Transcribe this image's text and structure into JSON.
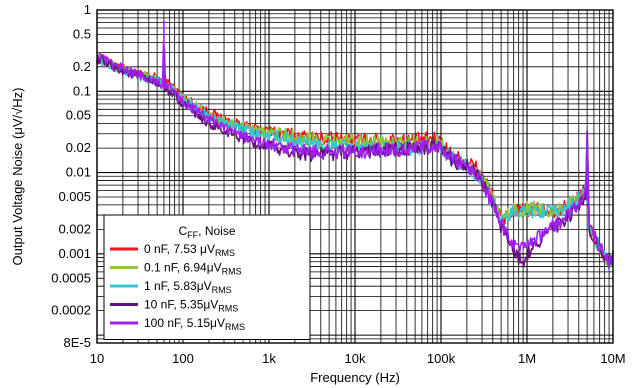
{
  "chart_data": {
    "type": "line",
    "xlabel": "Frequency (Hz)",
    "ylabel": "Output Voltage Noise (μV/√Hz)",
    "xscale": "log",
    "yscale": "log",
    "xlim": [
      10,
      10000000
    ],
    "ylim": [
      8e-05,
      1
    ],
    "grid": true,
    "x_ticks": [
      {
        "v": 10,
        "label": "10"
      },
      {
        "v": 100,
        "label": "100"
      },
      {
        "v": 1000,
        "label": "1k"
      },
      {
        "v": 10000,
        "label": "10k"
      },
      {
        "v": 100000,
        "label": "100k"
      },
      {
        "v": 1000000,
        "label": "1M"
      },
      {
        "v": 10000000,
        "label": "10M"
      }
    ],
    "y_ticks": [
      {
        "v": 1,
        "label": "1"
      },
      {
        "v": 0.5,
        "label": "0.5"
      },
      {
        "v": 0.2,
        "label": "0.2"
      },
      {
        "v": 0.1,
        "label": "0.1"
      },
      {
        "v": 0.05,
        "label": "0.05"
      },
      {
        "v": 0.02,
        "label": "0.02"
      },
      {
        "v": 0.01,
        "label": "0.01"
      },
      {
        "v": 0.005,
        "label": "0.005"
      },
      {
        "v": 0.002,
        "label": "0.002"
      },
      {
        "v": 0.001,
        "label": "0.001"
      },
      {
        "v": 0.0005,
        "label": "0.0005"
      },
      {
        "v": 0.0002,
        "label": "0.0002"
      },
      {
        "v": 8e-05,
        "label": "8E-5"
      }
    ],
    "legend": {
      "position": "bottom-left",
      "title_main": "C",
      "title_sub": "FF",
      "title_rest": ", Noise",
      "entries": [
        {
          "main": "0 nF, 7.53 μV",
          "sub": "RMS",
          "color": "#e8171f"
        },
        {
          "main": "0.1 nF, 6.94μV",
          "sub": "RMS",
          "color": "#8dc63f"
        },
        {
          "main": "1 nF, 5.83μV",
          "sub": "RMS",
          "color": "#36c5d0"
        },
        {
          "main": "10 nF, 5.35μV",
          "sub": "RMS",
          "color": "#6a0e82"
        },
        {
          "main": "100 nF, 5.15μV",
          "sub": "RMS",
          "color": "#a020f0"
        }
      ]
    },
    "series": [
      {
        "name": "0 nF, 7.53 μVRMS",
        "color": "#e8171f",
        "points": [
          [
            10,
            0.27
          ],
          [
            14,
            0.22
          ],
          [
            20,
            0.19
          ],
          [
            30,
            0.16
          ],
          [
            45,
            0.15
          ],
          [
            62,
            0.13
          ],
          [
            80,
            0.11
          ],
          [
            100,
            0.085
          ],
          [
            150,
            0.065
          ],
          [
            200,
            0.055
          ],
          [
            300,
            0.045
          ],
          [
            500,
            0.038
          ],
          [
            700,
            0.034
          ],
          [
            1000,
            0.032
          ],
          [
            1500,
            0.03
          ],
          [
            2000,
            0.028
          ],
          [
            3000,
            0.027
          ],
          [
            5000,
            0.026
          ],
          [
            10000,
            0.025
          ],
          [
            20000,
            0.025
          ],
          [
            30000,
            0.025
          ],
          [
            50000,
            0.025
          ],
          [
            80000,
            0.026
          ],
          [
            100000,
            0.024
          ],
          [
            130000,
            0.017
          ],
          [
            160000,
            0.015
          ],
          [
            200000,
            0.014
          ],
          [
            250000,
            0.012
          ],
          [
            300000,
            0.009
          ],
          [
            350000,
            0.007
          ],
          [
            400000,
            0.005
          ],
          [
            450000,
            0.0035
          ],
          [
            500000,
            0.0026
          ],
          [
            600000,
            0.003
          ],
          [
            700000,
            0.0035
          ],
          [
            800000,
            0.0033
          ],
          [
            1000000,
            0.0035
          ],
          [
            1500000,
            0.0036
          ],
          [
            2000000,
            0.0034
          ],
          [
            2500000,
            0.0035
          ],
          [
            3000000,
            0.004
          ],
          [
            4000000,
            0.005
          ],
          [
            4800000,
            0.006
          ],
          [
            5000000,
            0.03
          ],
          [
            5300000,
            0.002
          ],
          [
            6000000,
            0.0017
          ],
          [
            7000000,
            0.0012
          ],
          [
            8000000,
            0.0009
          ],
          [
            9000000,
            0.0008
          ],
          [
            10000000,
            0.0009
          ]
        ]
      },
      {
        "name": "0.1 nF, 6.94μVRMS",
        "color": "#8dc63f",
        "points": [
          [
            10,
            0.26
          ],
          [
            14,
            0.22
          ],
          [
            20,
            0.19
          ],
          [
            30,
            0.16
          ],
          [
            45,
            0.145
          ],
          [
            62,
            0.13
          ],
          [
            80,
            0.105
          ],
          [
            100,
            0.082
          ],
          [
            150,
            0.063
          ],
          [
            200,
            0.052
          ],
          [
            300,
            0.043
          ],
          [
            500,
            0.036
          ],
          [
            700,
            0.033
          ],
          [
            1000,
            0.031
          ],
          [
            1500,
            0.029
          ],
          [
            2000,
            0.027
          ],
          [
            3000,
            0.026
          ],
          [
            5000,
            0.025
          ],
          [
            10000,
            0.024
          ],
          [
            20000,
            0.024
          ],
          [
            30000,
            0.023
          ],
          [
            50000,
            0.023
          ],
          [
            80000,
            0.023
          ],
          [
            100000,
            0.022
          ],
          [
            130000,
            0.016
          ],
          [
            160000,
            0.014
          ],
          [
            200000,
            0.013
          ],
          [
            250000,
            0.011
          ],
          [
            300000,
            0.008
          ],
          [
            350000,
            0.0065
          ],
          [
            400000,
            0.0048
          ],
          [
            450000,
            0.0034
          ],
          [
            500000,
            0.0025
          ],
          [
            600000,
            0.003
          ],
          [
            700000,
            0.0035
          ],
          [
            800000,
            0.0033
          ],
          [
            1000000,
            0.0036
          ],
          [
            1500000,
            0.0036
          ],
          [
            2000000,
            0.0034
          ],
          [
            2500000,
            0.0036
          ],
          [
            3000000,
            0.004
          ],
          [
            4000000,
            0.005
          ],
          [
            4800000,
            0.006
          ],
          [
            5000000,
            0.03
          ],
          [
            5300000,
            0.002
          ],
          [
            6000000,
            0.0017
          ],
          [
            7000000,
            0.0012
          ],
          [
            8000000,
            0.0009
          ],
          [
            9000000,
            0.0008
          ],
          [
            10000000,
            0.0009
          ]
        ]
      },
      {
        "name": "1 nF, 5.83μVRMS",
        "color": "#36c5d0",
        "points": [
          [
            10,
            0.26
          ],
          [
            14,
            0.21
          ],
          [
            20,
            0.18
          ],
          [
            30,
            0.155
          ],
          [
            45,
            0.14
          ],
          [
            62,
            0.125
          ],
          [
            80,
            0.1
          ],
          [
            100,
            0.078
          ],
          [
            150,
            0.06
          ],
          [
            200,
            0.05
          ],
          [
            300,
            0.041
          ],
          [
            500,
            0.034
          ],
          [
            700,
            0.03
          ],
          [
            1000,
            0.028
          ],
          [
            1500,
            0.026
          ],
          [
            2000,
            0.024
          ],
          [
            3000,
            0.023
          ],
          [
            5000,
            0.021
          ],
          [
            10000,
            0.02
          ],
          [
            20000,
            0.02
          ],
          [
            30000,
            0.02
          ],
          [
            50000,
            0.02
          ],
          [
            80000,
            0.021
          ],
          [
            100000,
            0.02
          ],
          [
            130000,
            0.015
          ],
          [
            160000,
            0.013
          ],
          [
            200000,
            0.012
          ],
          [
            250000,
            0.01
          ],
          [
            300000,
            0.0075
          ],
          [
            350000,
            0.006
          ],
          [
            400000,
            0.0045
          ],
          [
            450000,
            0.0032
          ],
          [
            500000,
            0.0024
          ],
          [
            600000,
            0.0028
          ],
          [
            700000,
            0.0033
          ],
          [
            800000,
            0.0031
          ],
          [
            1000000,
            0.0034
          ],
          [
            1500000,
            0.0034
          ],
          [
            2000000,
            0.0032
          ],
          [
            2500000,
            0.0034
          ],
          [
            3000000,
            0.0038
          ],
          [
            4000000,
            0.0047
          ],
          [
            4800000,
            0.0058
          ],
          [
            5000000,
            0.028
          ],
          [
            5300000,
            0.002
          ],
          [
            6000000,
            0.0016
          ],
          [
            7000000,
            0.0012
          ],
          [
            8000000,
            0.0009
          ],
          [
            9000000,
            0.0008
          ],
          [
            10000000,
            0.0009
          ]
        ]
      },
      {
        "name": "10 nF, 5.35μVRMS",
        "color": "#6a0e82",
        "points": [
          [
            10,
            0.25
          ],
          [
            14,
            0.21
          ],
          [
            20,
            0.18
          ],
          [
            30,
            0.15
          ],
          [
            45,
            0.13
          ],
          [
            62,
            0.11
          ],
          [
            80,
            0.09
          ],
          [
            100,
            0.07
          ],
          [
            150,
            0.05
          ],
          [
            200,
            0.04
          ],
          [
            300,
            0.032
          ],
          [
            500,
            0.026
          ],
          [
            700,
            0.022
          ],
          [
            1000,
            0.02
          ],
          [
            1500,
            0.019
          ],
          [
            2000,
            0.018
          ],
          [
            3000,
            0.017
          ],
          [
            5000,
            0.017
          ],
          [
            10000,
            0.018
          ],
          [
            20000,
            0.019
          ],
          [
            30000,
            0.019
          ],
          [
            50000,
            0.02
          ],
          [
            80000,
            0.02
          ],
          [
            100000,
            0.019
          ],
          [
            130000,
            0.015
          ],
          [
            160000,
            0.013
          ],
          [
            200000,
            0.012
          ],
          [
            250000,
            0.01
          ],
          [
            300000,
            0.0075
          ],
          [
            350000,
            0.0055
          ],
          [
            400000,
            0.004
          ],
          [
            450000,
            0.003
          ],
          [
            500000,
            0.0022
          ],
          [
            600000,
            0.0016
          ],
          [
            700000,
            0.0012
          ],
          [
            800000,
            0.0009
          ],
          [
            900000,
            0.0008
          ],
          [
            1000000,
            0.001
          ],
          [
            1500000,
            0.0016
          ],
          [
            2000000,
            0.0021
          ],
          [
            2500000,
            0.0023
          ],
          [
            3000000,
            0.0028
          ],
          [
            4000000,
            0.0038
          ],
          [
            4800000,
            0.0048
          ],
          [
            5000000,
            0.03
          ],
          [
            5300000,
            0.0019
          ],
          [
            6000000,
            0.0016
          ],
          [
            7000000,
            0.0012
          ],
          [
            8000000,
            0.0009
          ],
          [
            9000000,
            0.0008
          ],
          [
            10000000,
            0.0009
          ]
        ]
      },
      {
        "name": "100 nF, 5.15μVRMS",
        "color": "#a020f0",
        "points": [
          [
            10,
            0.28
          ],
          [
            14,
            0.22
          ],
          [
            20,
            0.19
          ],
          [
            30,
            0.16
          ],
          [
            45,
            0.14
          ],
          [
            58,
            0.12
          ],
          [
            60,
            0.75
          ],
          [
            62,
            0.12
          ],
          [
            80,
            0.1
          ],
          [
            100,
            0.078
          ],
          [
            150,
            0.055
          ],
          [
            200,
            0.045
          ],
          [
            300,
            0.036
          ],
          [
            500,
            0.028
          ],
          [
            700,
            0.025
          ],
          [
            1000,
            0.022
          ],
          [
            1500,
            0.02
          ],
          [
            2000,
            0.019
          ],
          [
            3000,
            0.018
          ],
          [
            5000,
            0.018
          ],
          [
            10000,
            0.018
          ],
          [
            20000,
            0.019
          ],
          [
            30000,
            0.019
          ],
          [
            50000,
            0.02
          ],
          [
            80000,
            0.021
          ],
          [
            100000,
            0.02
          ],
          [
            130000,
            0.015
          ],
          [
            160000,
            0.013
          ],
          [
            200000,
            0.012
          ],
          [
            250000,
            0.01
          ],
          [
            300000,
            0.0075
          ],
          [
            350000,
            0.0055
          ],
          [
            400000,
            0.004
          ],
          [
            450000,
            0.003
          ],
          [
            500000,
            0.0023
          ],
          [
            600000,
            0.0017
          ],
          [
            700000,
            0.0013
          ],
          [
            800000,
            0.0011
          ],
          [
            1000000,
            0.0012
          ],
          [
            1500000,
            0.0017
          ],
          [
            2000000,
            0.0022
          ],
          [
            2500000,
            0.0025
          ],
          [
            3000000,
            0.003
          ],
          [
            4000000,
            0.004
          ],
          [
            4800000,
            0.0052
          ],
          [
            5000000,
            0.03
          ],
          [
            5300000,
            0.002
          ],
          [
            6000000,
            0.0017
          ],
          [
            7000000,
            0.0012
          ],
          [
            8000000,
            0.0009
          ],
          [
            9000000,
            0.0008
          ],
          [
            10000000,
            0.0009
          ]
        ]
      }
    ]
  }
}
